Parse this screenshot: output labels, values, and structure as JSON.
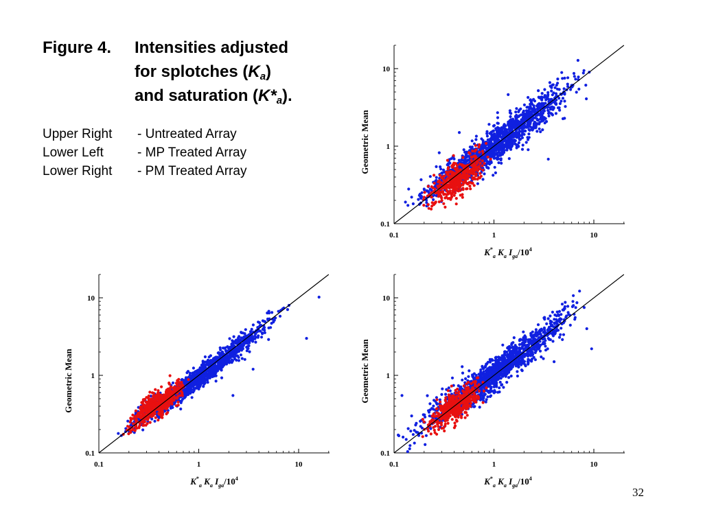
{
  "caption": {
    "figure_number": "Figure 4.",
    "line1": "Intensities adjusted",
    "line2_prefix": "for splotches (",
    "line2_symbol": "K",
    "line2_sub": "a",
    "line2_suffix": ")",
    "line3_prefix": "and saturation (",
    "line3_symbol": "K*",
    "line3_sub": "a",
    "line3_suffix": ")."
  },
  "legend": [
    {
      "position": "Upper Right",
      "description": "- Untreated Array"
    },
    {
      "position": "Lower Left",
      "description": "- MP Treated Array"
    },
    {
      "position": "Lower Right",
      "description": "- PM Treated Array"
    }
  ],
  "slide_number": "32",
  "colors": {
    "blue": "#1020e0",
    "red": "#e81010",
    "axis": "#000000"
  },
  "chart_data": [
    {
      "type": "scatter",
      "panel": "upper-right",
      "ylabel": "Geometric Mean",
      "xlabel": {
        "sym": "K",
        "sup": "*",
        "sub": "a",
        "sym2": "K",
        "sub2": "a",
        "sym3": "I",
        "sub3": "ga",
        "tail": "/10",
        "exp": "4"
      },
      "xscale": "log",
      "yscale": "log",
      "xlim": [
        0.1,
        20
      ],
      "ylim": [
        0.1,
        20
      ],
      "xticks": [
        {
          "value": 0.1,
          "label": "0.1"
        },
        {
          "value": 1,
          "label": "1"
        },
        {
          "value": 10,
          "label": "10"
        }
      ],
      "yticks": [
        {
          "value": 0.1,
          "label": "0.1"
        },
        {
          "value": 1,
          "label": "1"
        },
        {
          "value": 10,
          "label": "10"
        }
      ],
      "reference_line": {
        "from": 0.1,
        "to": 20,
        "label": "y = x"
      },
      "series": [
        {
          "color": "blue",
          "count": 1500,
          "xmin": 0.12,
          "xmax": 10,
          "spread": 0.11,
          "bias": 0.0,
          "samples": [
            [
              0.15,
              0.22
            ],
            [
              0.2,
              0.28
            ],
            [
              0.3,
              0.45
            ],
            [
              0.5,
              0.9
            ],
            [
              1.0,
              1.4
            ],
            [
              2.0,
              2.2
            ],
            [
              5.0,
              5.0
            ],
            [
              9.0,
              9.0
            ]
          ]
        },
        {
          "color": "red",
          "count": 420,
          "xmin": 0.18,
          "xmax": 1.0,
          "spread": 0.1,
          "bias": -0.08,
          "samples": [
            [
              0.2,
              0.22
            ],
            [
              0.3,
              0.3
            ],
            [
              0.5,
              0.45
            ],
            [
              0.8,
              0.6
            ]
          ]
        }
      ],
      "outliers": [
        [
          3.5,
          0.68
        ],
        [
          2.2,
          0.9
        ],
        [
          0.45,
          1.5
        ],
        [
          0.14,
          0.28
        ],
        [
          0.13,
          0.19
        ]
      ]
    },
    {
      "type": "scatter",
      "panel": "lower-left",
      "ylabel": "Geometric Mean",
      "xlabel": {
        "sym": "K",
        "sup": "*",
        "sub": "a",
        "sym2": "K",
        "sub2": "a",
        "sym3": "I",
        "sub3": "ga",
        "tail": "/10",
        "exp": "4"
      },
      "xscale": "log",
      "yscale": "log",
      "xlim": [
        0.1,
        20
      ],
      "ylim": [
        0.1,
        20
      ],
      "xticks": [
        {
          "value": 0.1,
          "label": "0.1"
        },
        {
          "value": 1,
          "label": "1"
        },
        {
          "value": 10,
          "label": "10"
        }
      ],
      "yticks": [
        {
          "value": 0.1,
          "label": "0.1"
        },
        {
          "value": 1,
          "label": "1"
        },
        {
          "value": 10,
          "label": "10"
        }
      ],
      "reference_line": {
        "from": 0.1,
        "to": 20,
        "label": "y = x"
      },
      "series": [
        {
          "color": "blue",
          "count": 1400,
          "xmin": 0.13,
          "xmax": 9.0,
          "spread": 0.07,
          "bias": -0.03,
          "samples": [
            [
              0.2,
              0.19
            ],
            [
              0.5,
              0.5
            ],
            [
              1.0,
              0.95
            ],
            [
              3.0,
              2.8
            ],
            [
              8.0,
              8.0
            ]
          ]
        },
        {
          "color": "red",
          "count": 520,
          "xmin": 0.17,
          "xmax": 0.85,
          "spread": 0.07,
          "bias": 0.0,
          "samples": [
            [
              0.2,
              0.2
            ],
            [
              0.4,
              0.4
            ],
            [
              0.7,
              0.7
            ]
          ]
        }
      ],
      "outliers": [
        [
          16,
          10.2
        ],
        [
          12,
          3.0
        ],
        [
          5.0,
          2.9
        ],
        [
          3.5,
          1.2
        ],
        [
          2.2,
          0.55
        ]
      ]
    },
    {
      "type": "scatter",
      "panel": "lower-right",
      "ylabel": "Geometric Mean",
      "xlabel": {
        "sym": "K",
        "sup": "*",
        "sub": "a",
        "sym2": "K",
        "sub2": "a",
        "sym3": "I",
        "sub3": "ga",
        "tail": "/10",
        "exp": "4"
      },
      "xscale": "log",
      "yscale": "log",
      "xlim": [
        0.1,
        20
      ],
      "ylim": [
        0.1,
        20
      ],
      "xticks": [
        {
          "value": 0.1,
          "label": "0.1"
        },
        {
          "value": 1,
          "label": "1"
        },
        {
          "value": 10,
          "label": "10"
        }
      ],
      "yticks": [
        {
          "value": 0.1,
          "label": "0.1"
        },
        {
          "value": 1,
          "label": "1"
        },
        {
          "value": 10,
          "label": "10"
        }
      ],
      "reference_line": {
        "from": 0.1,
        "to": 20,
        "label": "y = x"
      },
      "series": [
        {
          "color": "blue",
          "count": 1450,
          "xmin": 0.1,
          "xmax": 10,
          "spread": 0.1,
          "bias": 0.02,
          "samples": [
            [
              0.15,
              0.3
            ],
            [
              0.3,
              0.4
            ],
            [
              0.5,
              0.6
            ],
            [
              1.0,
              1.1
            ],
            [
              3.0,
              3.0
            ],
            [
              8.0,
              7.5
            ]
          ]
        },
        {
          "color": "red",
          "count": 480,
          "xmin": 0.18,
          "xmax": 0.95,
          "spread": 0.09,
          "bias": -0.04,
          "samples": [
            [
              0.2,
              0.25
            ],
            [
              0.4,
              0.35
            ],
            [
              0.7,
              0.5
            ]
          ]
        }
      ],
      "outliers": [
        [
          9.5,
          2.2
        ],
        [
          8.5,
          4.0
        ],
        [
          0.12,
          0.55
        ],
        [
          0.11,
          0.17
        ],
        [
          4.0,
          1.5
        ]
      ]
    }
  ]
}
